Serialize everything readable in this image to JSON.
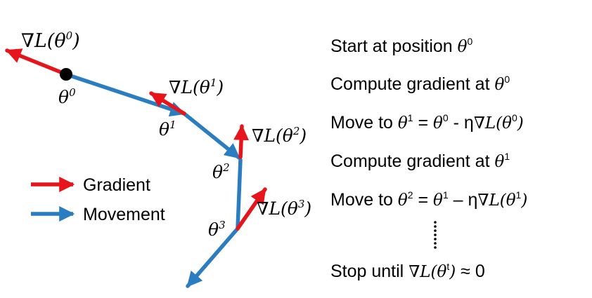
{
  "colors": {
    "gradient": "#e8141c",
    "movement": "#2a7dc1",
    "point": "#000000"
  },
  "icons": {
    "gradient_arrow": "red-arrow-icon",
    "movement_arrow": "blue-arrow-icon",
    "start_point": "black-dot-icon"
  },
  "labels": {
    "grad0": {
      "base": "∇L(θ",
      "sup": "0",
      "close": ")"
    },
    "grad1": {
      "base": "∇L(θ",
      "sup": "1",
      "close": ")"
    },
    "grad2": {
      "base": "∇L(θ",
      "sup": "2",
      "close": ")"
    },
    "grad3": {
      "base": "∇L(θ",
      "sup": "3",
      "close": ")"
    },
    "theta0": {
      "base": "θ",
      "sup": "0"
    },
    "theta1": {
      "base": "θ",
      "sup": "1"
    },
    "theta2": {
      "base": "θ",
      "sup": "2"
    },
    "theta3": {
      "base": "θ",
      "sup": "3"
    }
  },
  "legend": {
    "gradient": "Gradient",
    "movement": "Movement"
  },
  "steps": [
    {
      "text": "Start at position ",
      "math": "θ",
      "sup": "0"
    },
    {
      "text": "Compute gradient at ",
      "math": "θ",
      "sup": "0"
    },
    {
      "text": "Move to ",
      "math": "θ",
      "sup": "1",
      "middle": " = ",
      "math2": "θ",
      "sup2": "0",
      "tail": " - η",
      "math3": "∇L(θ",
      "sup3": "0",
      "close": ")"
    },
    {
      "text": "Compute gradient at ",
      "math": "θ",
      "sup": "1"
    },
    {
      "text": "Move to ",
      "math": "θ",
      "sup": "2",
      "middle": " = ",
      "math2": "θ",
      "sup2": "1",
      "tail": " – η",
      "math3": "∇L(θ",
      "sup3": "1",
      "close": ")"
    },
    {
      "text": "Stop until ",
      "math": "∇L(θ",
      "sup": "t",
      "close": ")",
      "tail": " ≈ 0"
    }
  ]
}
